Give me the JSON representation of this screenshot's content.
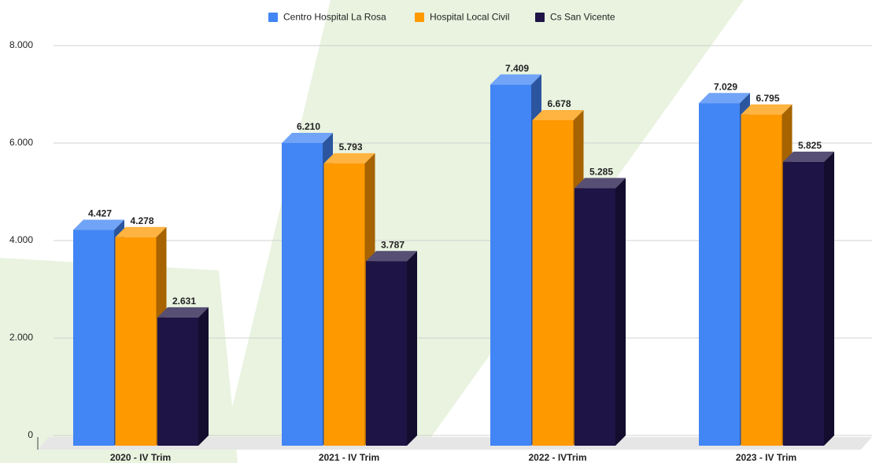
{
  "chart_data": {
    "type": "bar3d",
    "categories": [
      "2020 - IV Trim",
      "2021 - IV Trim",
      "2022 - IVTrim",
      "2023 - IV Trim"
    ],
    "series": [
      {
        "name": "Centro Hospital La Rosa",
        "color": "#4285f4",
        "values": [
          4427,
          6210,
          7409,
          7029
        ],
        "value_labels": [
          "4.427",
          "6.210",
          "7.409",
          "7.029"
        ]
      },
      {
        "name": "Hospital Local Civil",
        "color": "#ff9900",
        "values": [
          4278,
          5793,
          6678,
          6795
        ],
        "value_labels": [
          "4.278",
          "5.793",
          "6.678",
          "6.795"
        ]
      },
      {
        "name": "Cs San Vicente",
        "color": "#1f1446",
        "values": [
          2631,
          3787,
          5285,
          5825
        ],
        "value_labels": [
          "2.631",
          "3.787",
          "5.285",
          "5.825"
        ]
      }
    ],
    "ylim": [
      0,
      8000
    ],
    "yticks": [
      0,
      {
        "value": 2000,
        "label": "2.000"
      },
      {
        "value": 4000,
        "label": "4.000"
      },
      {
        "value": 6000,
        "label": "6.000"
      },
      {
        "value": 8000,
        "label": "8.000"
      }
    ],
    "grid": true,
    "legend": "top"
  }
}
